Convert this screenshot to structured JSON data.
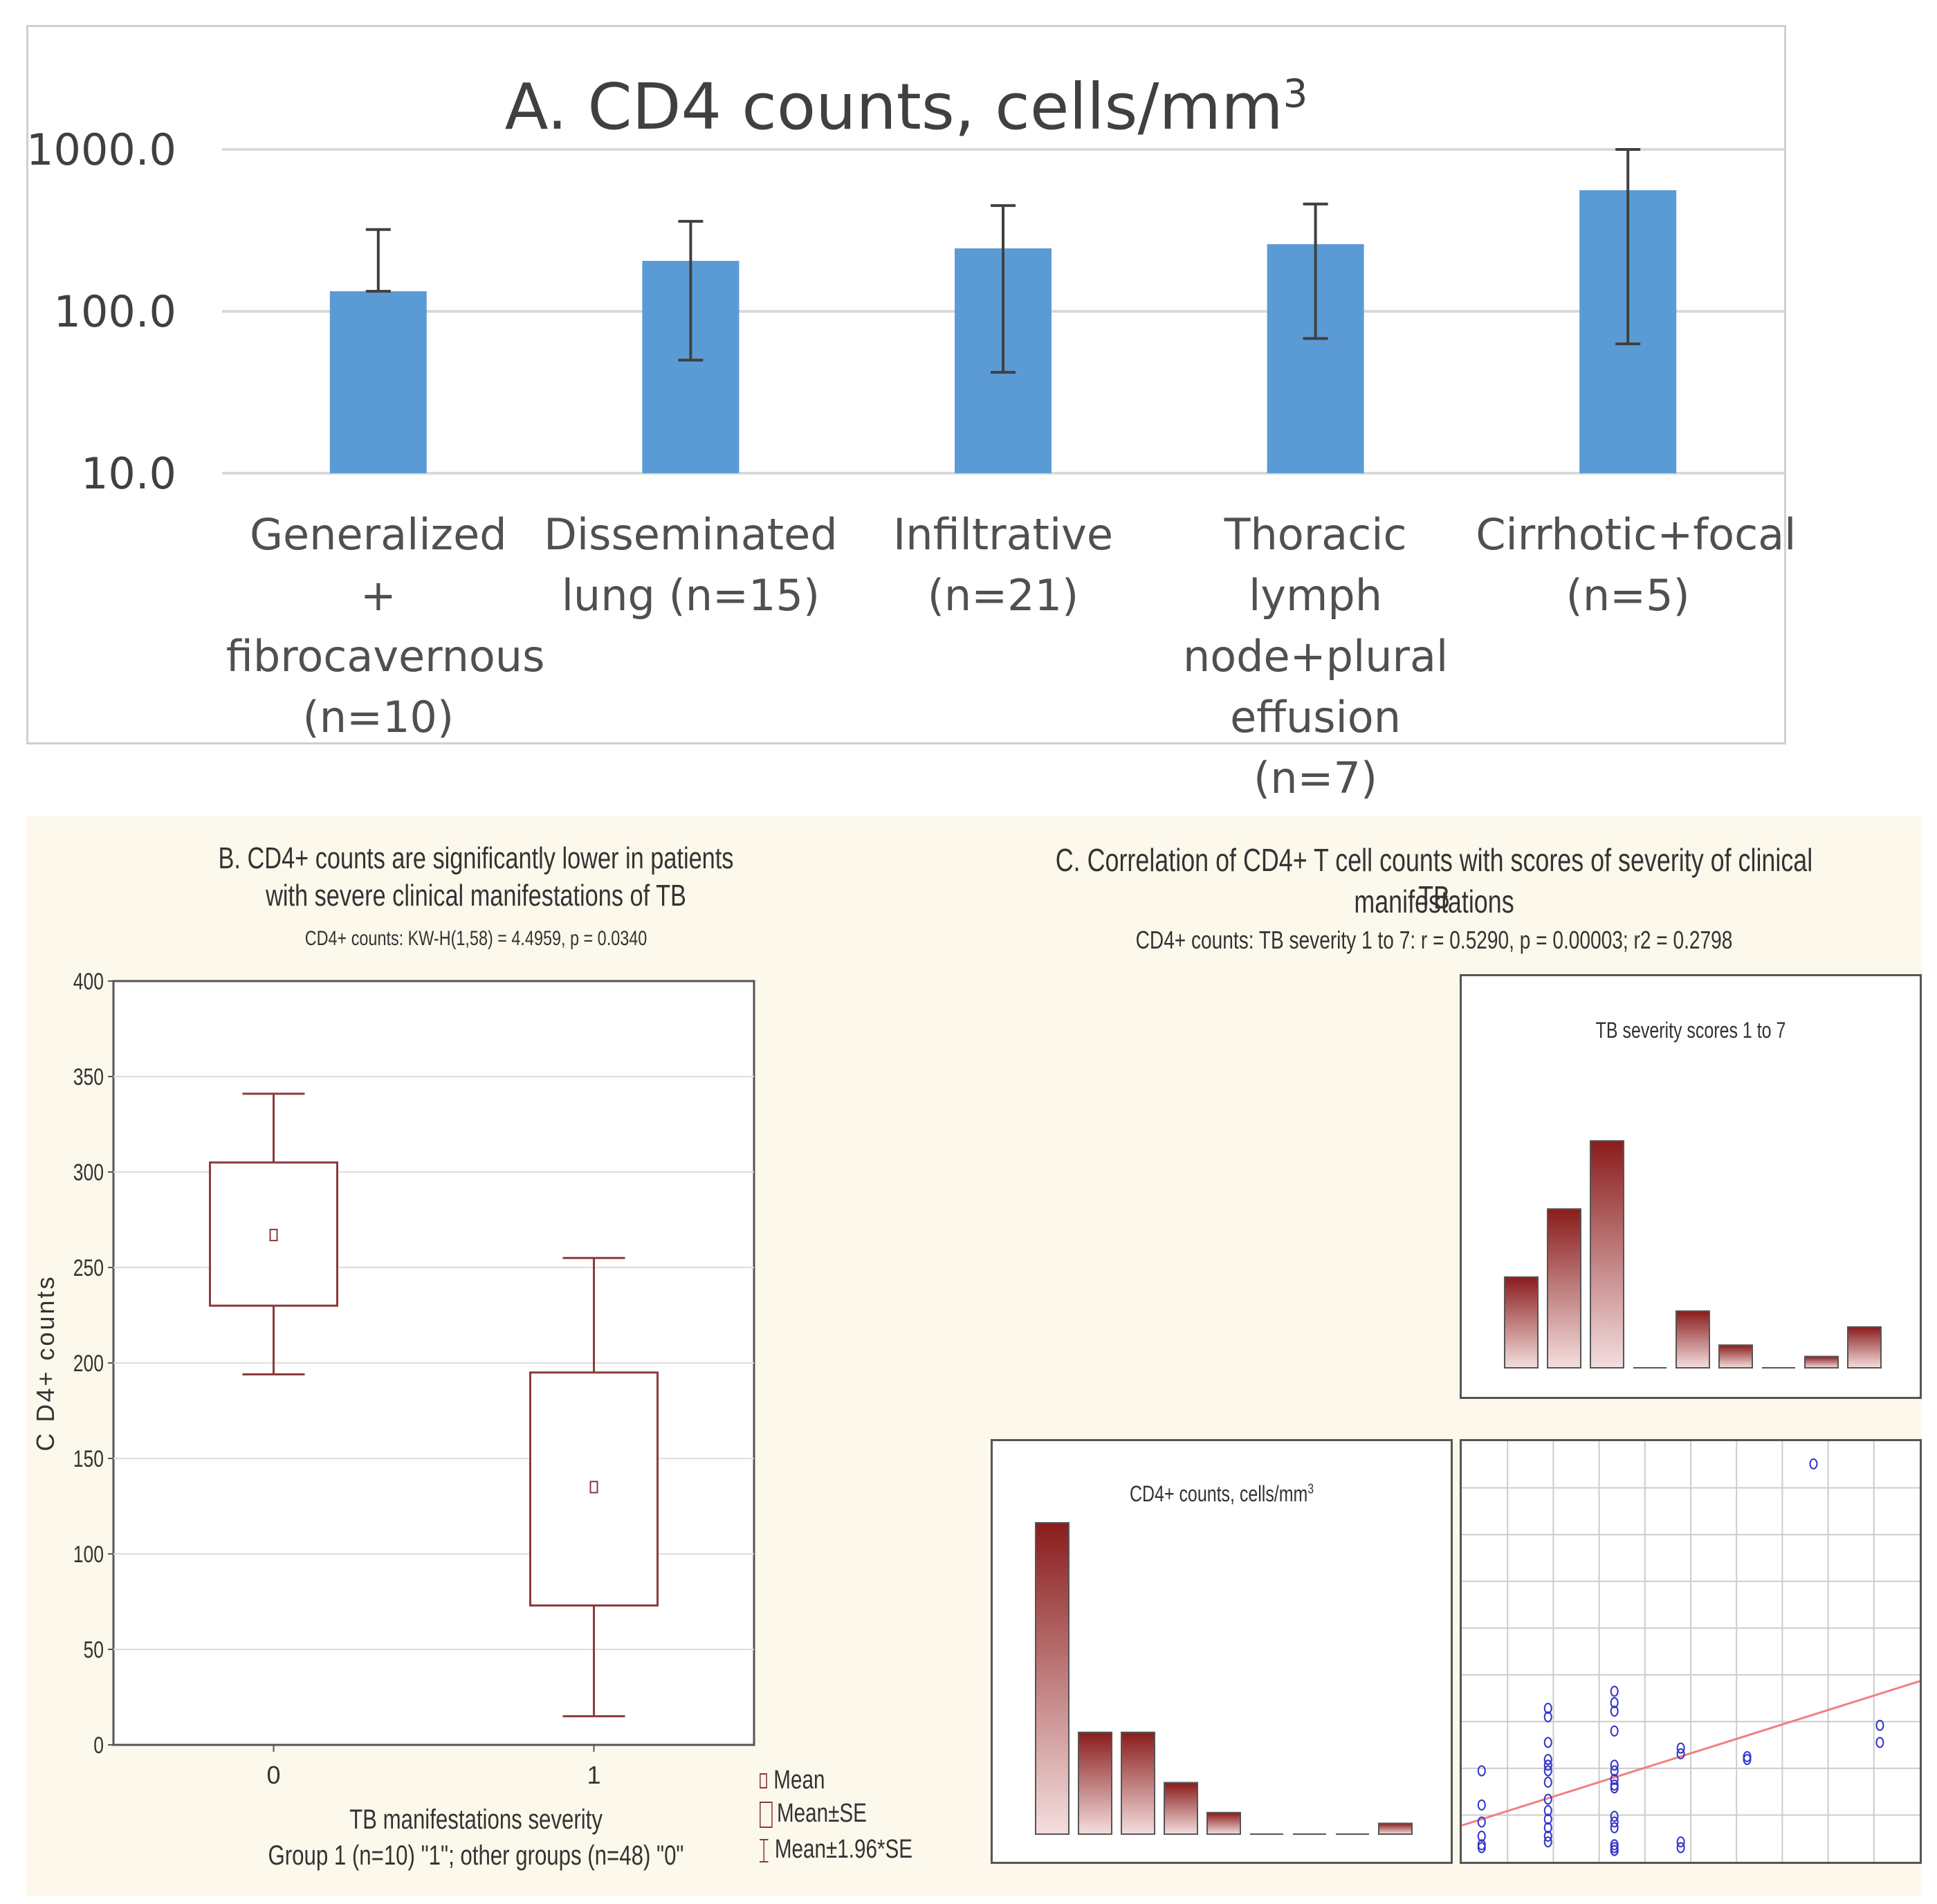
{
  "panelA": {
    "title": "A. CD4 counts, cells/mm",
    "title_sup": "3",
    "chart_data": {
      "type": "bar",
      "scale": "log",
      "ylim": [
        10,
        1000
      ],
      "yticks": [
        "1000.0",
        "100.0",
        "10.0"
      ],
      "grid": true,
      "bar_color": "#5b9bd5",
      "categories": [
        "Generalized +\nfibrocavernous\n(n=10)",
        "Disseminated\nlung (n=15)",
        "Infiltrative\n(n=21)",
        "Thoracic lymph\nnode+plural\neffusion (n=7)",
        "Cirrhotic+focal\n(n=5)"
      ],
      "values": [
        133,
        205,
        245,
        260,
        560
      ],
      "error_low": [
        133,
        50,
        42,
        68,
        63
      ],
      "error_high": [
        320,
        360,
        450,
        460,
        1000
      ]
    }
  },
  "panelB": {
    "title_line1": "B. CD4+ counts are significantly lower in patients",
    "title_line2": "with severe clinical manifestations of TB",
    "stat": "CD4+ counts:  KW-H(1,58) = 4.4959, p = 0.0340",
    "ylabel": "C D4+  counts",
    "xlabel_line1": "TB manifestations severity",
    "xlabel_line2": "Group 1 (n=10) \"1\"; other groups (n=48) \"0\"",
    "legend": [
      "Mean",
      "Mean±SE",
      "Mean±1.96*SE"
    ],
    "chart_data": {
      "type": "box",
      "categories": [
        "0",
        "1"
      ],
      "ylim": [
        0,
        400
      ],
      "yticks": [
        "0",
        "50",
        "100",
        "150",
        "200",
        "250",
        "300",
        "350",
        "400"
      ],
      "series": [
        {
          "category": "0",
          "mean": 267,
          "se_low": 230,
          "se_high": 305,
          "ci_low": 194,
          "ci_high": 341
        },
        {
          "category": "1",
          "mean": 135,
          "se_low": 73,
          "se_high": 195,
          "ci_low": 15,
          "ci_high": 255
        }
      ],
      "color": "#8b3a3a"
    }
  },
  "panelC": {
    "title_line1": "C. Correlation of CD4+ T cell counts with scores of severity of clinical TB",
    "title_line2": "manifestations",
    "stat": "CD4+ counts: TB severity 1 to 7:   r = 0.5290, p = 0.00003; r2 = 0.2798",
    "hist_top_title": "TB severity scores 1 to 7",
    "hist_left_title": "CD4+ counts, cells/mm",
    "hist_left_sup": "3",
    "chart_data": [
      {
        "type": "bar",
        "name": "TB severity histogram",
        "values": [
          4,
          7,
          10,
          0,
          2.5,
          1,
          0,
          0.5,
          1.8
        ],
        "ymax": 10
      },
      {
        "type": "bar",
        "name": "CD4 histogram",
        "values": [
          26,
          8.5,
          8.5,
          4.3,
          1.8,
          0,
          0,
          0,
          0.9
        ],
        "ymax": 26
      },
      {
        "type": "scatter",
        "color": "#3333cc",
        "line_color": "#f08080",
        "x": [
          1,
          1,
          1,
          1,
          1,
          1,
          2,
          2,
          2,
          2,
          2,
          2,
          2,
          2,
          2,
          2,
          2,
          2,
          2,
          3,
          3,
          3,
          3,
          3,
          3,
          3,
          3,
          3,
          3,
          3,
          3,
          3,
          3,
          3,
          3,
          4,
          4,
          4,
          4,
          5,
          5,
          6,
          7,
          7
        ],
        "y": [
          80,
          50,
          25,
          10,
          5,
          140,
          250,
          235,
          190,
          160,
          150,
          140,
          120,
          90,
          70,
          55,
          40,
          25,
          15,
          280,
          260,
          245,
          210,
          150,
          140,
          125,
          115,
          110,
          60,
          50,
          40,
          10,
          5,
          0,
          0,
          180,
          170,
          15,
          5,
          160,
          165,
          680,
          220,
          190
        ],
        "xlim": [
          0.7,
          7.6
        ],
        "ylim": [
          -20,
          720
        ]
      }
    ]
  }
}
